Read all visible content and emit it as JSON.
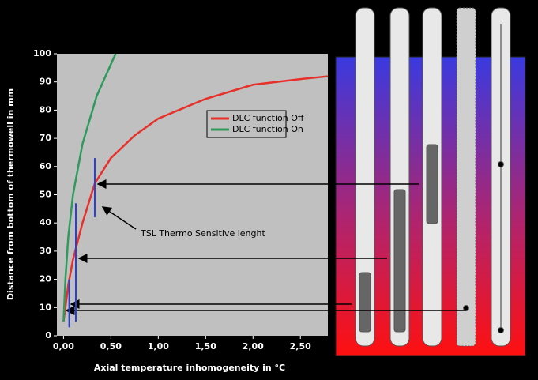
{
  "chart_data": {
    "type": "line",
    "x_label": "Axial temperature inhomogeneity in °C",
    "y_label": "Distance from bottom of thermowell in mm",
    "annotation": "TSL Thermo Sensitive lenght",
    "xlim": [
      -0.07,
      2.79
    ],
    "ylim": [
      0,
      100
    ],
    "xticks": [
      {
        "value": 0,
        "label": "0,00"
      },
      {
        "value": 0.5,
        "label": "0,50"
      },
      {
        "value": 1,
        "label": "1,00"
      },
      {
        "value": 1.5,
        "label": "1,50"
      },
      {
        "value": 2,
        "label": "2,00"
      },
      {
        "value": 2.5,
        "label": "2,50"
      }
    ],
    "yticks": [
      0,
      10,
      20,
      30,
      40,
      50,
      60,
      70,
      80,
      90,
      100
    ],
    "series": [
      {
        "name": "DLC function Off",
        "color": "#e8302a",
        "x": [
          0,
          0.05,
          0.1,
          0.2,
          0.33,
          0.5,
          0.75,
          1.0,
          1.5,
          2.0,
          2.5,
          2.79
        ],
        "values": [
          5,
          18,
          27,
          40,
          54,
          63,
          71,
          77,
          84,
          89,
          91,
          92
        ]
      },
      {
        "name": "DLC function On",
        "color": "#2e9a5c",
        "x": [
          0,
          0.02,
          0.05,
          0.1,
          0.2,
          0.35,
          0.55
        ],
        "values": [
          5,
          20,
          35,
          50,
          68,
          85,
          100
        ]
      }
    ],
    "tsl_markers": {
      "color": "#2a3fd0",
      "x": [
        0.33,
        0.13,
        0.06
      ],
      "low": [
        42,
        5,
        3
      ],
      "high": [
        63,
        47,
        20
      ]
    }
  }
}
